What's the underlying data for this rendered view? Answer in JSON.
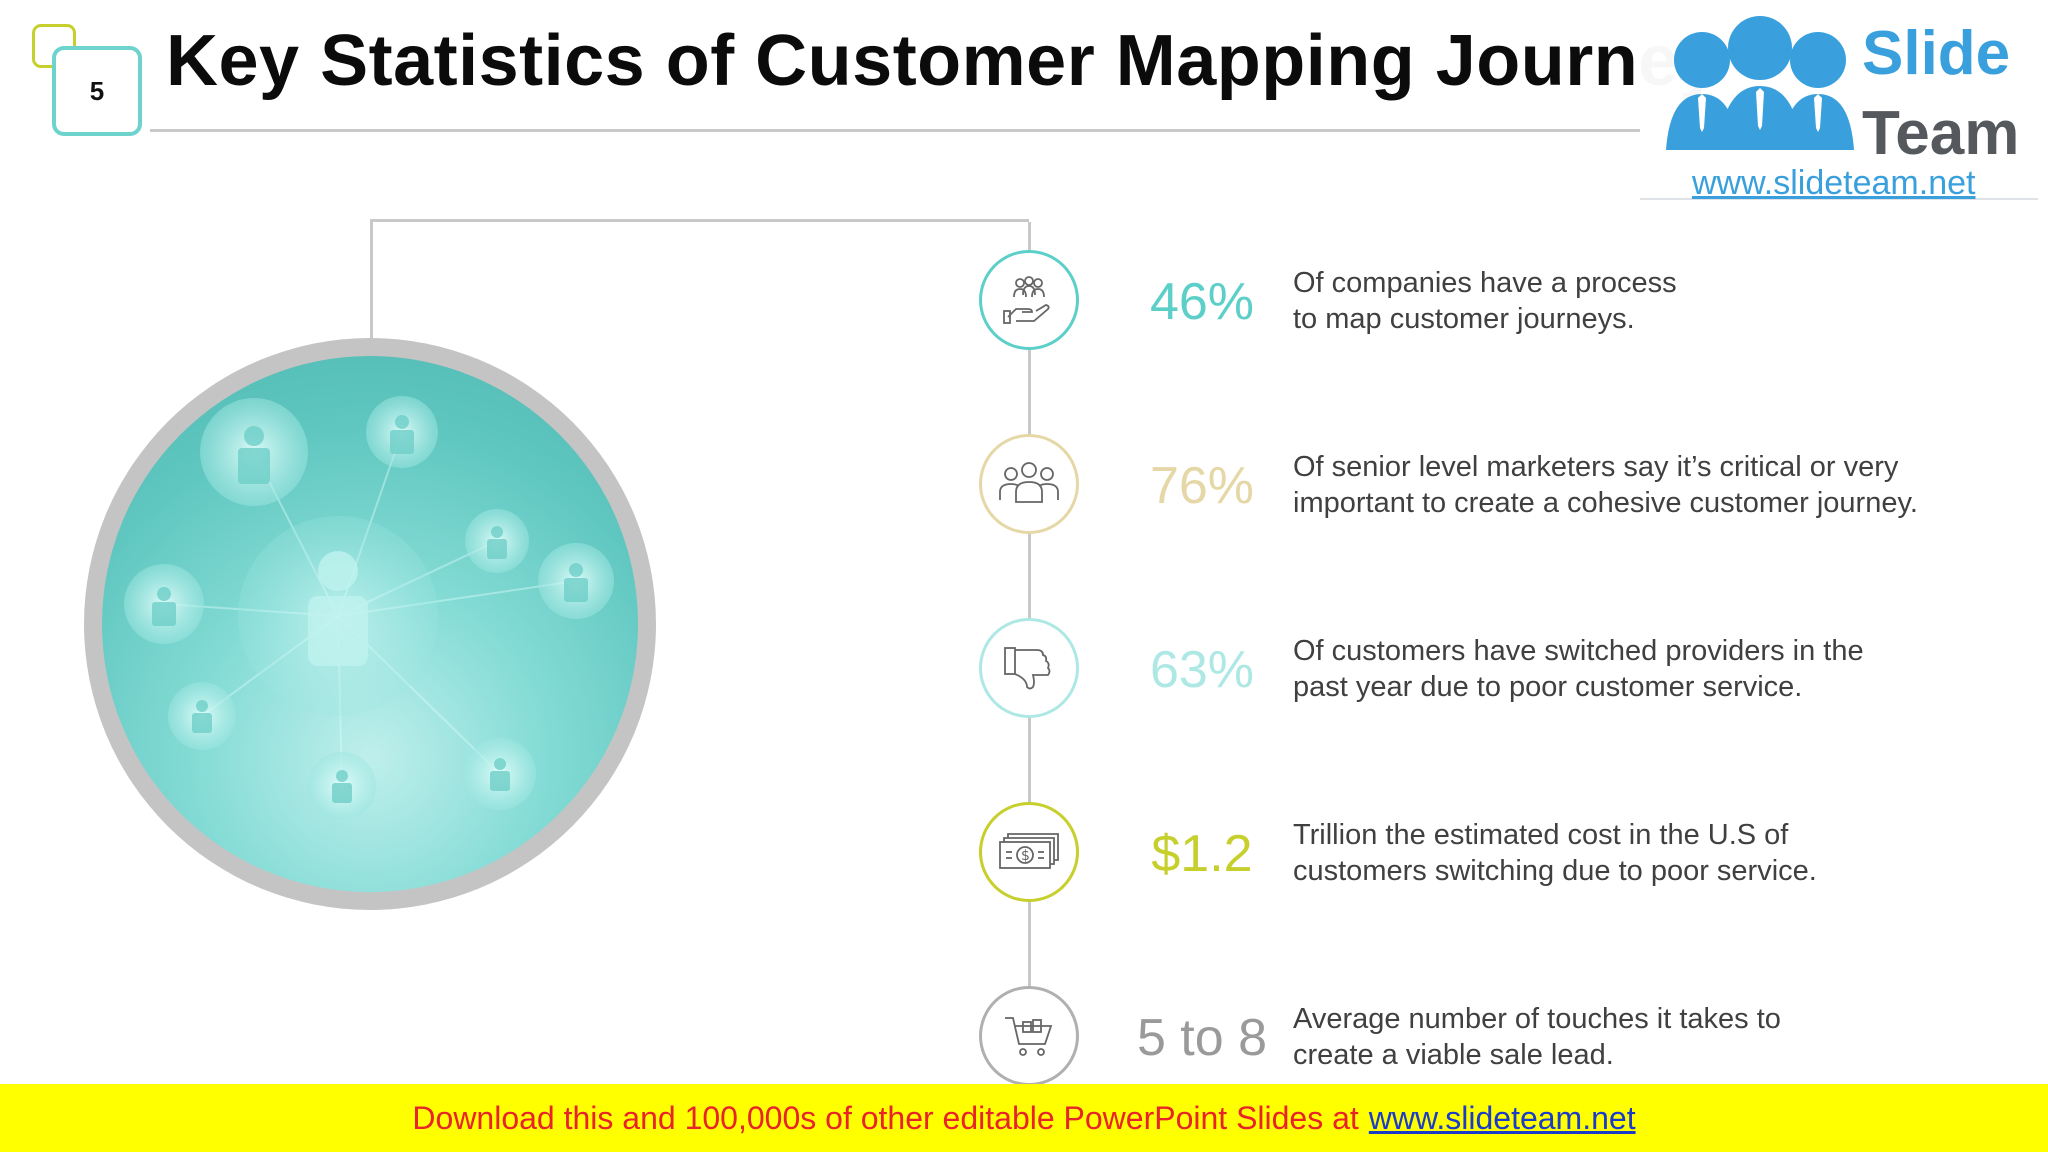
{
  "header": {
    "slide_number": "5",
    "title": "Key Statistics of Customer Mapping Journey"
  },
  "logo": {
    "word1": "Slide",
    "word2": "Team",
    "url": "www.slideteam.net"
  },
  "stats": [
    {
      "value": "46%",
      "color": "#5ccfc9",
      "icon": "hand-holding-people-icon",
      "line1": "Of companies have a process",
      "line2": "to map customer journeys."
    },
    {
      "value": "76%",
      "color": "#e6d7a6",
      "icon": "group-people-icon",
      "line1": "Of senior level marketers say it’s critical or very",
      "line2": "important to create a cohesive customer journey."
    },
    {
      "value": "63%",
      "color": "#aee8e5",
      "icon": "thumbs-down-icon",
      "line1": "Of customers have switched providers in the",
      "line2": "past year due to poor customer service."
    },
    {
      "value": "$1.2",
      "color": "#c6cf2b",
      "icon": "money-bills-icon",
      "line1": "Trillion the estimated cost in the U.S of",
      "line2": "customers switching due to poor service."
    },
    {
      "value": "5 to 8",
      "color": "#b0b0b0",
      "icon": "shopping-cart-icon",
      "line1": "Average number of touches it takes to",
      "line2": "create a viable sale lead."
    }
  ],
  "footer": {
    "text": "Download this and 100,000s of other editable PowerPoint Slides at",
    "link": "www.slideteam.net"
  }
}
